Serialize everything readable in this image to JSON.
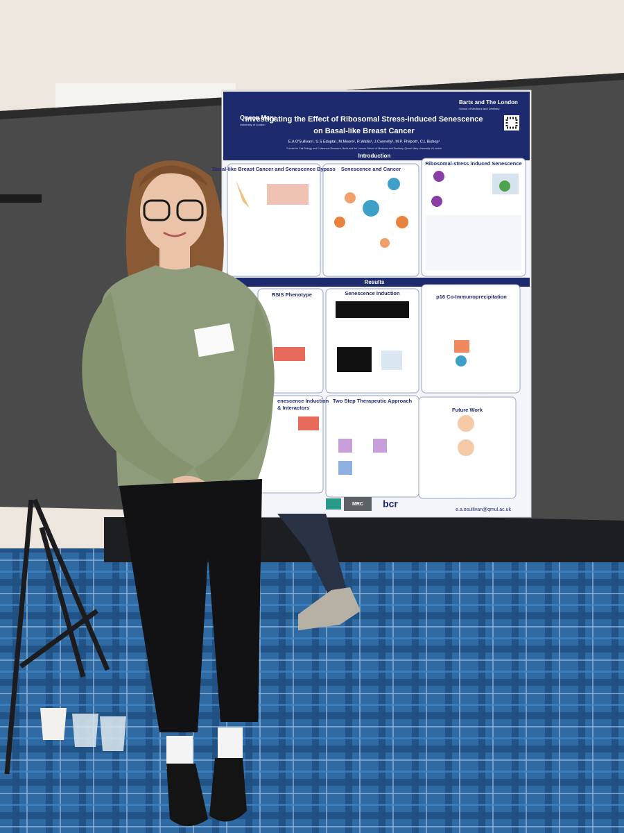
{
  "poster": {
    "logo_left": {
      "name": "Queen Mary",
      "sub": "University of London"
    },
    "logo_right": {
      "name": "Barts and The London",
      "sub": "School of Medicine and Dentistry"
    },
    "title": [
      "Investigating the Effect of Ribosomal Stress-induced Senescence",
      "on Basal-like Breast Cancer"
    ],
    "authors": "E.A O'Sullivan¹, U.S Edupta¹, M.Moore¹, R.Wallis¹, J.Connelly¹, M.P. Philpott¹, C.L Bishop¹",
    "affiliation": "¹Centre for Cell Biology and Cutaneous Research, Barts and the London School of Medicine and Dentistry, Queen Mary University of London",
    "sections": [
      "Introduction",
      "Results"
    ],
    "panels": [
      "Basal-like Breast Cancer and Senescence Bypass",
      "Senescence and Cancer",
      "Ribosomal-stress induced Senescence",
      "RSIS Phenotype",
      "Senescence Induction",
      "p16 Co-Immunoprecipitation",
      "enescence Induction",
      "& Interactors",
      "Two Step Therapeutic Approach",
      "Future Work"
    ],
    "footer": {
      "logos": [
        "MRC",
        "bcr"
      ],
      "email": "e.a.osullivan@qmul.ac.uk"
    }
  }
}
